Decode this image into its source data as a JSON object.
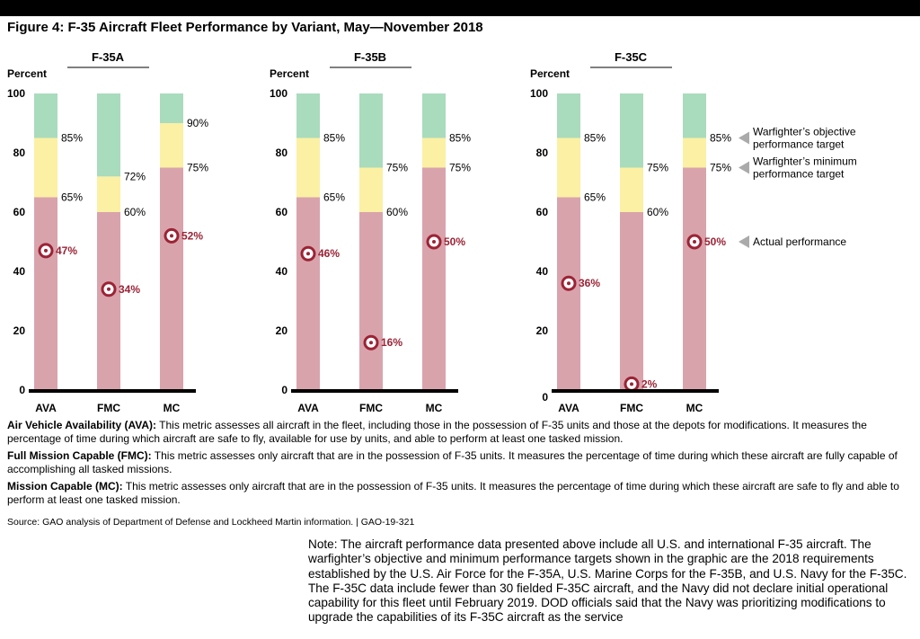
{
  "figure_title": "Figure 4: F-35 Aircraft Fleet Performance by Variant, May—November 2018",
  "chart_data": {
    "type": "bar",
    "ylabel": "Percent",
    "ylim": [
      0,
      100
    ],
    "yticks": [
      0,
      20,
      40,
      60,
      80,
      100
    ],
    "colors": {
      "below_minimum": "#d9a3ac",
      "minimum_to_objective": "#fbf0a4",
      "above_objective": "#a9dbbd",
      "marker": "#9b2335",
      "actual_label": "#9b2335"
    },
    "panels": [
      {
        "name": "F-35A",
        "bars": [
          {
            "category": "AVA",
            "minimum": 65,
            "objective": 85,
            "actual": 47,
            "minimum_label": "65%",
            "objective_label": "85%",
            "actual_label": "47%"
          },
          {
            "category": "FMC",
            "minimum": 60,
            "objective": 72,
            "actual": 34,
            "minimum_label": "60%",
            "objective_label": "72%",
            "actual_label": "34%"
          },
          {
            "category": "MC",
            "minimum": 75,
            "objective": 90,
            "actual": 52,
            "minimum_label": "75%",
            "objective_label": "90%",
            "actual_label": "52%"
          }
        ]
      },
      {
        "name": "F-35B",
        "bars": [
          {
            "category": "AVA",
            "minimum": 65,
            "objective": 85,
            "actual": 46,
            "minimum_label": "65%",
            "objective_label": "85%",
            "actual_label": "46%"
          },
          {
            "category": "FMC",
            "minimum": 60,
            "objective": 75,
            "actual": 16,
            "minimum_label": "60%",
            "objective_label": "75%",
            "actual_label": "16%"
          },
          {
            "category": "MC",
            "minimum": 75,
            "objective": 85,
            "actual": 50,
            "minimum_label": "75%",
            "objective_label": "85%",
            "actual_label": "50%"
          }
        ]
      },
      {
        "name": "F-35C",
        "bars": [
          {
            "category": "AVA",
            "minimum": 65,
            "objective": 85,
            "actual": 36,
            "minimum_label": "65%",
            "objective_label": "85%",
            "actual_label": "36%"
          },
          {
            "category": "FMC",
            "minimum": 60,
            "objective": 75,
            "actual": 2,
            "minimum_label": "60%",
            "objective_label": "75%",
            "actual_label": "2%"
          },
          {
            "category": "MC",
            "minimum": 75,
            "objective": 85,
            "actual": 50,
            "minimum_label": "75%",
            "objective_label": "85%",
            "actual_label": "50%"
          }
        ]
      }
    ],
    "legend": [
      {
        "key": "objective",
        "lines": [
          "Warfighter’s objective",
          "performance target"
        ]
      },
      {
        "key": "minimum",
        "lines": [
          "Warfighter’s minimum",
          "performance target"
        ]
      },
      {
        "key": "actual",
        "lines": [
          "Actual performance"
        ]
      }
    ]
  },
  "definitions": [
    {
      "term": "Air Vehicle Availability (AVA):",
      "text": " This metric assesses all aircraft in the fleet, including those in the possession of F-35 units and those at the depots for modifications. It measures the percentage of time during which aircraft are safe to fly, available for use by units, and able to perform at least one tasked mission."
    },
    {
      "term": "Full Mission Capable (FMC):",
      "text": " This metric assesses only aircraft that are in the possession of F-35 units. It measures the percentage of time during which these aircraft are fully capable of accomplishing all tasked missions."
    },
    {
      "term": "Mission Capable (MC):",
      "text": " This metric assesses only aircraft that are in the possession of F-35 units. It measures the percentage of time during which these aircraft are safe to fly and able to perform at least one tasked mission."
    }
  ],
  "source": "Source: GAO analysis of Department of Defense and Lockheed Martin information.  |  GAO-19-321",
  "note": "Note: The aircraft performance data presented above include all U.S. and international F-35 aircraft. The warfighter’s objective and minimum performance targets shown in the graphic are the 2018 requirements established by the U.S. Air Force for the F-35A, U.S. Marine Corps for the F-35B, and U.S. Navy for the F-35C. The F-35C data include fewer than 30 fielded F-35C aircraft, and the Navy did not declare initial operational capability for this fleet until February 2019. DOD officials said that the Navy was prioritizing modifications to upgrade the capabilities of its F-35C aircraft as the service"
}
